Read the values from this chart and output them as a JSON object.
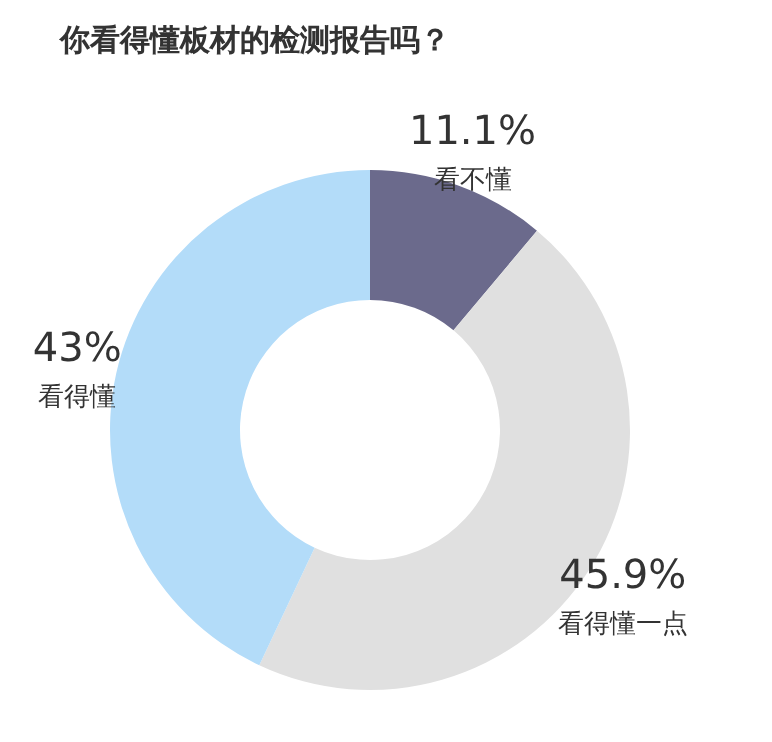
{
  "chart_data": {
    "type": "donut",
    "title": "你看得懂板材的检测报告吗？",
    "categories": [
      "看不懂",
      "看得懂一点",
      "看得懂"
    ],
    "values": [
      11.1,
      45.9,
      43
    ],
    "colors": [
      "#6b6a8c",
      "#e0e0e0",
      "#b3dcf9"
    ],
    "value_labels": [
      "11.1%",
      "45.9%",
      "43%"
    ],
    "legend": false
  }
}
